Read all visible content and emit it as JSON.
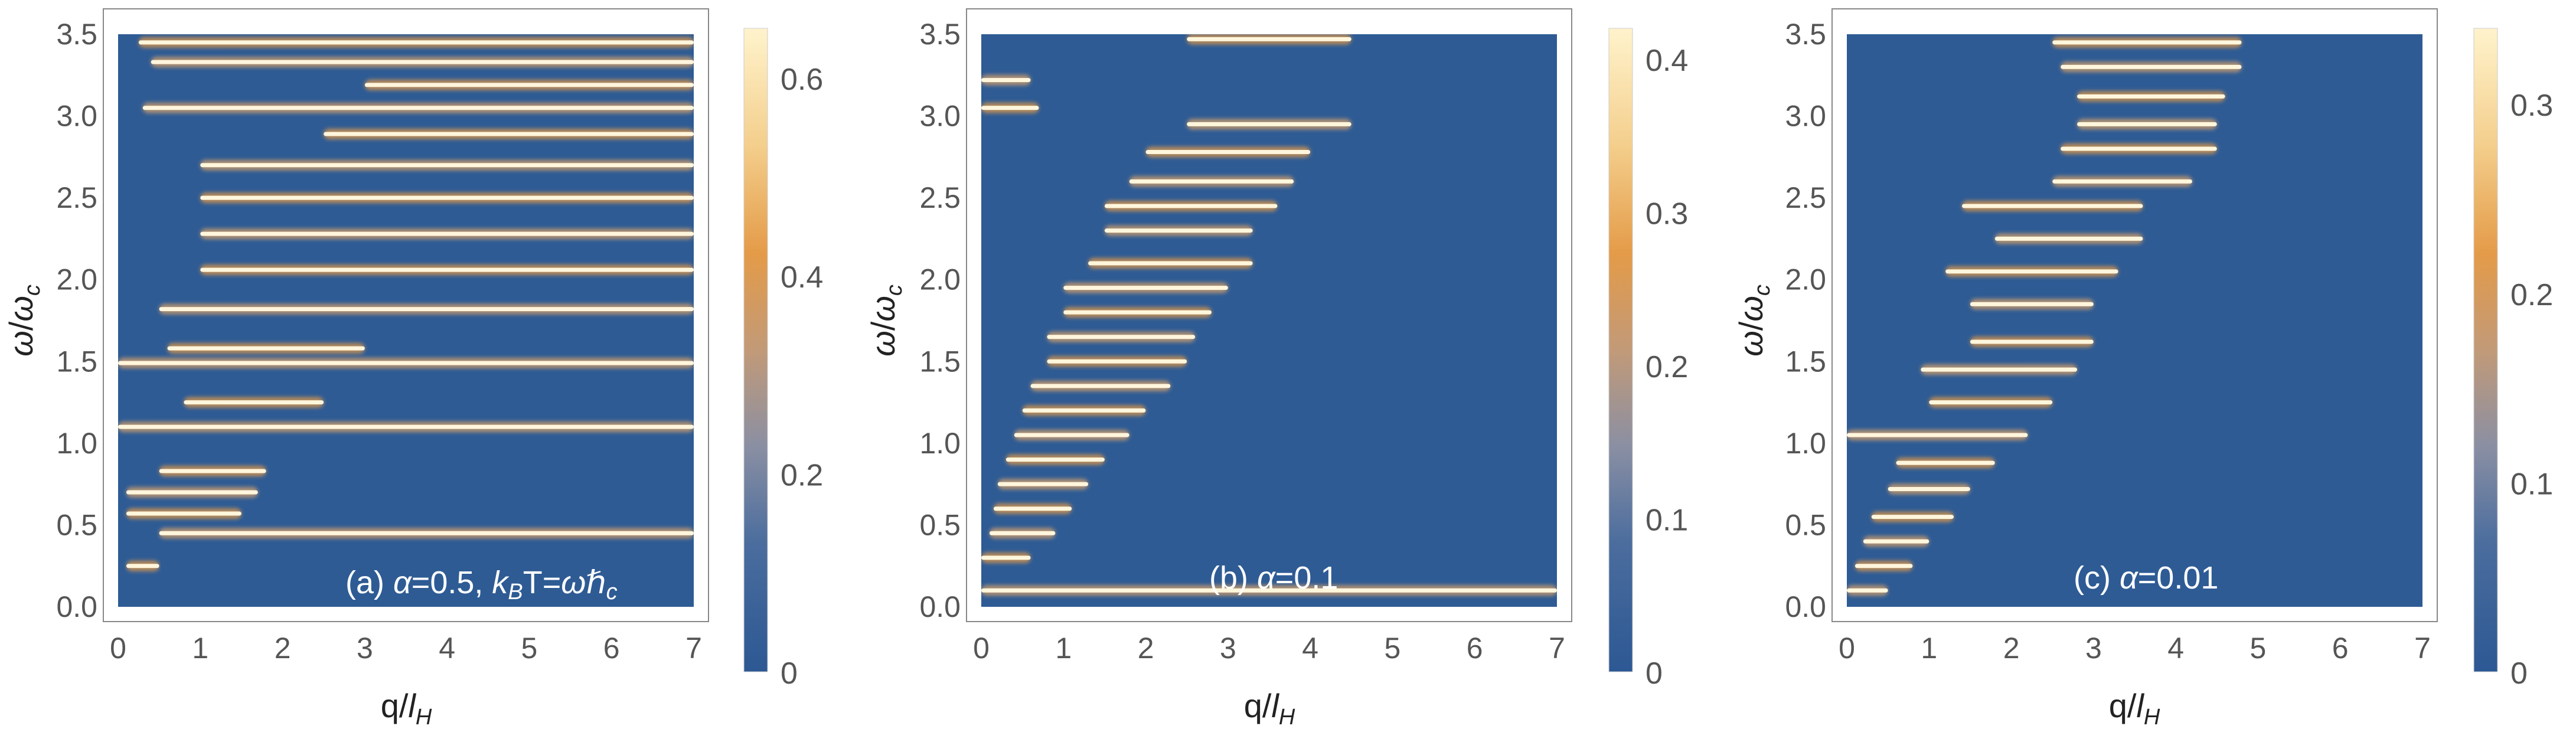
{
  "chart_data": [
    {
      "type": "heatmap",
      "panel_label": "(a)",
      "params_text": "α=0.5, kBT=ωℏc",
      "xlabel": "q/lH",
      "ylabel": "ω/ωc",
      "xlim": [
        0,
        7
      ],
      "ylim": [
        0,
        3.5
      ],
      "x_ticks": [
        "0",
        "1",
        "2",
        "3",
        "4",
        "5",
        "6",
        "7"
      ],
      "y_ticks": [
        "0.0",
        "0.5",
        "1.0",
        "1.5",
        "2.0",
        "2.5",
        "3.0",
        "3.5"
      ],
      "colorbar": {
        "min": 0,
        "max": 0.65,
        "ticks": [
          "0",
          "0.2",
          "0.4",
          "0.6"
        ],
        "tick_values": [
          0,
          0.2,
          0.4,
          0.6
        ]
      },
      "bright_bands": [
        {
          "omega": 3.45,
          "q_start": 0.25,
          "q_end": 7.0
        },
        {
          "omega": 3.33,
          "q_start": 0.4,
          "q_end": 7.0
        },
        {
          "omega": 3.19,
          "q_start": 3.0,
          "q_end": 7.0
        },
        {
          "omega": 3.05,
          "q_start": 0.3,
          "q_end": 7.0
        },
        {
          "omega": 2.89,
          "q_start": 2.5,
          "q_end": 7.0
        },
        {
          "omega": 2.7,
          "q_start": 1.0,
          "q_end": 7.0
        },
        {
          "omega": 2.5,
          "q_start": 1.0,
          "q_end": 7.0
        },
        {
          "omega": 2.28,
          "q_start": 1.0,
          "q_end": 7.0
        },
        {
          "omega": 2.06,
          "q_start": 1.0,
          "q_end": 7.0
        },
        {
          "omega": 1.82,
          "q_start": 0.5,
          "q_end": 7.0
        },
        {
          "omega": 1.58,
          "q_start": 0.6,
          "q_end": 3.0
        },
        {
          "omega": 1.49,
          "q_start": 0.0,
          "q_end": 7.0
        },
        {
          "omega": 1.25,
          "q_start": 0.8,
          "q_end": 2.5
        },
        {
          "omega": 1.1,
          "q_start": 0.0,
          "q_end": 7.0
        },
        {
          "omega": 0.83,
          "q_start": 0.5,
          "q_end": 1.8
        },
        {
          "omega": 0.7,
          "q_start": 0.1,
          "q_end": 1.7
        },
        {
          "omega": 0.57,
          "q_start": 0.1,
          "q_end": 1.5
        },
        {
          "omega": 0.45,
          "q_start": 0.5,
          "q_end": 7.0
        },
        {
          "omega": 0.25,
          "q_start": 0.1,
          "q_end": 0.5
        }
      ]
    },
    {
      "type": "heatmap",
      "panel_label": "(b)",
      "params_text": "α=0.1",
      "xlabel": "q/lH",
      "ylabel": "ω/ωc",
      "xlim": [
        0,
        7
      ],
      "ylim": [
        0,
        3.5
      ],
      "x_ticks": [
        "0",
        "1",
        "2",
        "3",
        "4",
        "5",
        "6",
        "7"
      ],
      "y_ticks": [
        "0.0",
        "0.5",
        "1.0",
        "1.5",
        "2.0",
        "2.5",
        "3.0",
        "3.5"
      ],
      "colorbar": {
        "min": 0,
        "max": 0.42,
        "ticks": [
          "0",
          "0.1",
          "0.2",
          "0.3",
          "0.4"
        ],
        "tick_values": [
          0,
          0.1,
          0.2,
          0.3,
          0.4
        ]
      },
      "bright_bands": [
        {
          "omega": 3.47,
          "q_start": 2.5,
          "q_end": 4.5
        },
        {
          "omega": 3.22,
          "q_start": 0.0,
          "q_end": 0.6
        },
        {
          "omega": 3.05,
          "q_start": 0.0,
          "q_end": 0.7
        },
        {
          "omega": 2.95,
          "q_start": 2.5,
          "q_end": 4.5
        },
        {
          "omega": 2.78,
          "q_start": 2.0,
          "q_end": 4.0
        },
        {
          "omega": 2.6,
          "q_start": 1.8,
          "q_end": 3.8
        },
        {
          "omega": 2.45,
          "q_start": 1.5,
          "q_end": 3.6
        },
        {
          "omega": 2.3,
          "q_start": 1.5,
          "q_end": 3.3
        },
        {
          "omega": 2.1,
          "q_start": 1.3,
          "q_end": 3.3
        },
        {
          "omega": 1.95,
          "q_start": 1.0,
          "q_end": 3.0
        },
        {
          "omega": 1.8,
          "q_start": 1.0,
          "q_end": 2.8
        },
        {
          "omega": 1.65,
          "q_start": 0.8,
          "q_end": 2.6
        },
        {
          "omega": 1.5,
          "q_start": 0.8,
          "q_end": 2.5
        },
        {
          "omega": 1.35,
          "q_start": 0.6,
          "q_end": 2.3
        },
        {
          "omega": 1.2,
          "q_start": 0.5,
          "q_end": 2.0
        },
        {
          "omega": 1.05,
          "q_start": 0.4,
          "q_end": 1.8
        },
        {
          "omega": 0.9,
          "q_start": 0.3,
          "q_end": 1.5
        },
        {
          "omega": 0.75,
          "q_start": 0.2,
          "q_end": 1.3
        },
        {
          "omega": 0.6,
          "q_start": 0.15,
          "q_end": 1.1
        },
        {
          "omega": 0.45,
          "q_start": 0.1,
          "q_end": 0.9
        },
        {
          "omega": 0.3,
          "q_start": 0.0,
          "q_end": 0.6
        },
        {
          "omega": 0.1,
          "q_start": 0.0,
          "q_end": 7.0
        }
      ]
    },
    {
      "type": "heatmap",
      "panel_label": "(c)",
      "params_text": "α=0.01",
      "xlabel": "q/lH",
      "ylabel": "ω/ωc",
      "xlim": [
        0,
        7
      ],
      "ylim": [
        0,
        3.5
      ],
      "x_ticks": [
        "0",
        "1",
        "2",
        "3",
        "4",
        "5",
        "6",
        "7"
      ],
      "y_ticks": [
        "0.0",
        "0.5",
        "1.0",
        "1.5",
        "2.0",
        "2.5",
        "3.0",
        "3.5"
      ],
      "colorbar": {
        "min": 0,
        "max": 0.34,
        "ticks": [
          "0",
          "0.1",
          "0.2",
          "0.3"
        ],
        "tick_values": [
          0,
          0.1,
          0.2,
          0.3
        ]
      },
      "bright_bands": [
        {
          "omega": 3.45,
          "q_start": 2.5,
          "q_end": 4.8
        },
        {
          "omega": 3.3,
          "q_start": 2.6,
          "q_end": 4.8
        },
        {
          "omega": 3.12,
          "q_start": 2.8,
          "q_end": 4.6
        },
        {
          "omega": 2.95,
          "q_start": 2.8,
          "q_end": 4.5
        },
        {
          "omega": 2.8,
          "q_start": 2.6,
          "q_end": 4.5
        },
        {
          "omega": 2.6,
          "q_start": 2.5,
          "q_end": 4.2
        },
        {
          "omega": 2.45,
          "q_start": 1.4,
          "q_end": 3.6
        },
        {
          "omega": 2.25,
          "q_start": 1.8,
          "q_end": 3.6
        },
        {
          "omega": 2.05,
          "q_start": 1.2,
          "q_end": 3.3
        },
        {
          "omega": 1.85,
          "q_start": 1.5,
          "q_end": 3.0
        },
        {
          "omega": 1.62,
          "q_start": 1.5,
          "q_end": 3.0
        },
        {
          "omega": 1.45,
          "q_start": 0.9,
          "q_end": 2.8
        },
        {
          "omega": 1.25,
          "q_start": 1.0,
          "q_end": 2.5
        },
        {
          "omega": 1.05,
          "q_start": 0.0,
          "q_end": 2.2
        },
        {
          "omega": 0.88,
          "q_start": 0.6,
          "q_end": 1.8
        },
        {
          "omega": 0.72,
          "q_start": 0.5,
          "q_end": 1.5
        },
        {
          "omega": 0.55,
          "q_start": 0.3,
          "q_end": 1.3
        },
        {
          "omega": 0.4,
          "q_start": 0.2,
          "q_end": 1.0
        },
        {
          "omega": 0.25,
          "q_start": 0.1,
          "q_end": 0.8
        },
        {
          "omega": 0.1,
          "q_start": 0.0,
          "q_end": 0.5
        }
      ]
    }
  ],
  "colors": {
    "background": "#2e5b94",
    "low": "#2c5893",
    "mid": "#8a8fa3",
    "orange": "#e49b48",
    "high": "#fff3cc",
    "axis": "#888888"
  }
}
